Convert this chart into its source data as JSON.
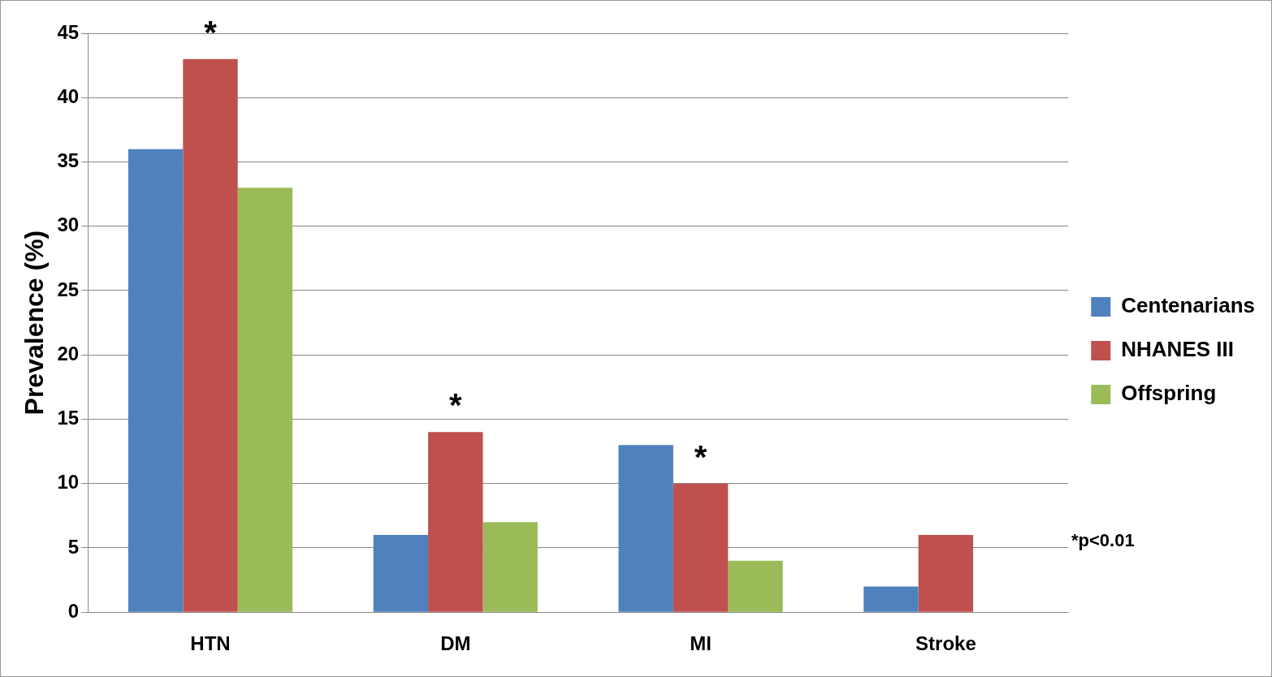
{
  "chart_data": {
    "type": "bar",
    "ylabel": "Prevalence (%)",
    "categories": [
      "HTN",
      "DM",
      "MI",
      "Stroke"
    ],
    "series": [
      {
        "name": "Centenarians",
        "color": "#4f81bd",
        "values": [
          36,
          6,
          13,
          2
        ]
      },
      {
        "name": "NHANES III",
        "color": "#c0504d",
        "values": [
          43,
          14,
          10,
          6
        ]
      },
      {
        "name": "Offspring",
        "color": "#9bbb59",
        "values": [
          33,
          7,
          4,
          0
        ]
      }
    ],
    "ylim": [
      0,
      45
    ],
    "yticks": [
      0,
      5,
      10,
      15,
      20,
      25,
      30,
      35,
      40,
      45
    ],
    "grid": "y",
    "legend": "right",
    "annotations": [
      {
        "text": "*",
        "x": "HTN",
        "y": 43
      },
      {
        "text": "*",
        "x": "DM",
        "y": 14
      },
      {
        "text": "*",
        "x": "MI",
        "y": 10
      },
      "*p<0.01"
    ]
  }
}
